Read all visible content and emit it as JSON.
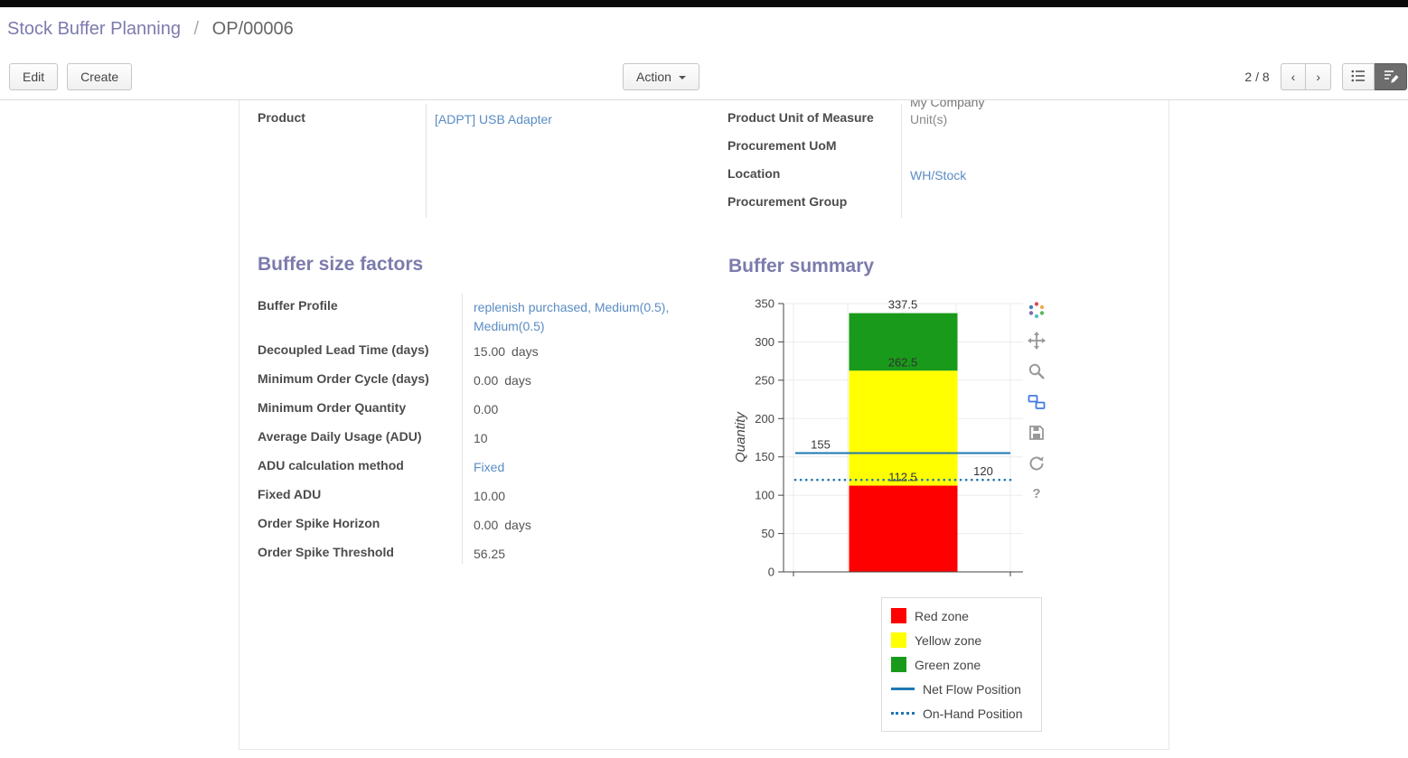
{
  "breadcrumb": {
    "parent": "Stock Buffer Planning",
    "separator": "/",
    "current": "OP/00006"
  },
  "toolbar": {
    "edit": "Edit",
    "create": "Create",
    "action": "Action",
    "pager": "2 / 8"
  },
  "icons": {
    "pager_previous": "‹",
    "pager_next": "›",
    "action_caret": "caret-down",
    "view_switcher": [
      "list-view",
      "form-view"
    ],
    "chart_modebar": [
      "plotly-logo",
      "pan",
      "zoom",
      "compare-data",
      "save",
      "reset-axes",
      "help"
    ]
  },
  "fields": {
    "left": [
      {
        "label": "Product",
        "value": "[ADPT] USB Adapter",
        "link": true
      }
    ],
    "right_partial_value": "My Company",
    "right": [
      {
        "label": "Product Unit of Measure",
        "value": "Unit(s)",
        "link": false,
        "muted": true
      },
      {
        "label": "Procurement UoM",
        "value": "",
        "link": false
      },
      {
        "label": "Location",
        "value": "WH/Stock",
        "link": true
      },
      {
        "label": "Procurement Group",
        "value": "",
        "link": false
      }
    ]
  },
  "sections": {
    "factors": {
      "title": "Buffer size factors",
      "rows": [
        {
          "label": "Buffer Profile",
          "value": "replenish purchased, Medium(0.5), Medium(0.5)",
          "link": true
        },
        {
          "label": "Decoupled Lead Time (days)",
          "value": "15.00",
          "suffix": "days"
        },
        {
          "label": "Minimum Order Cycle (days)",
          "value": "0.00",
          "suffix": "days"
        },
        {
          "label": "Minimum Order Quantity",
          "value": "0.00"
        },
        {
          "label": "Average Daily Usage (ADU)",
          "value": "10"
        },
        {
          "label": "ADU calculation method",
          "value": "Fixed",
          "link": true
        },
        {
          "label": "Fixed ADU",
          "value": "10.00"
        },
        {
          "label": "Order Spike Horizon",
          "value": "0.00",
          "suffix": "days"
        },
        {
          "label": "Order Spike Threshold",
          "value": "56.25"
        }
      ]
    },
    "summary": {
      "title": "Buffer summary"
    }
  },
  "chart_data": {
    "type": "bar",
    "title": "",
    "ylabel": "Quantity",
    "ylim": [
      0,
      350
    ],
    "yticks": [
      0,
      50,
      100,
      150,
      200,
      250,
      300,
      350
    ],
    "grid": true,
    "zones": [
      {
        "name": "Red zone",
        "from": 0,
        "to": 112.5,
        "color": "#ff0000"
      },
      {
        "name": "Yellow zone",
        "from": 112.5,
        "to": 262.5,
        "color": "#ffff00"
      },
      {
        "name": "Green zone",
        "from": 262.5,
        "to": 337.5,
        "color": "#1a9a1a"
      }
    ],
    "lines": [
      {
        "name": "Net Flow Position",
        "value": 155,
        "style": "solid",
        "color": "#1f77b4"
      },
      {
        "name": "On-Hand Position",
        "value": 120,
        "style": "dotted",
        "color": "#1f77b4"
      }
    ],
    "annotations": [
      {
        "text": "337.5",
        "value": 337.5,
        "anchor": "bar-center"
      },
      {
        "text": "262.5",
        "value": 262.5,
        "anchor": "bar-center"
      },
      {
        "text": "155",
        "value": 155,
        "anchor": "left"
      },
      {
        "text": "112.5",
        "value": 112.5,
        "anchor": "bar-center"
      },
      {
        "text": "120",
        "value": 120,
        "anchor": "right"
      }
    ],
    "legend": [
      "Red zone",
      "Yellow zone",
      "Green zone",
      "Net Flow Position",
      "On-Hand Position"
    ],
    "legend_position": "below-right"
  }
}
